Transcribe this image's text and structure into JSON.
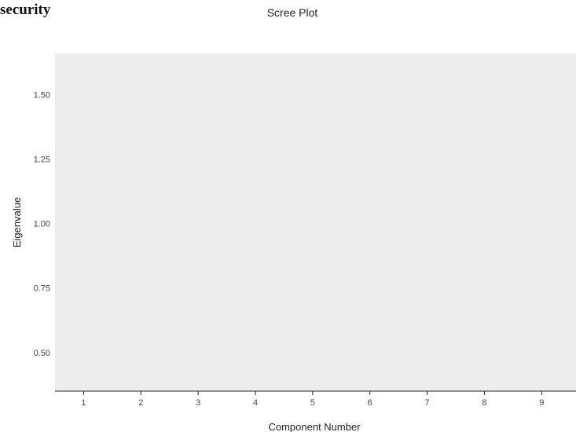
{
  "header": {
    "corner_text": "security"
  },
  "chart_data": {
    "type": "line",
    "title": "Scree Plot",
    "xlabel": "Component Number",
    "ylabel": "Eigenvalue",
    "x": [
      1,
      2,
      3,
      4,
      5,
      6,
      7,
      8,
      9
    ],
    "x_tick_labels": [
      "1",
      "2",
      "3",
      "4",
      "5",
      "6",
      "7",
      "8",
      "9"
    ],
    "y_ticks": [
      0.5,
      0.75,
      1.0,
      1.25,
      1.5
    ],
    "y_tick_labels": [
      "0.50",
      "0.75",
      "1.00",
      "1.25",
      "1.50"
    ],
    "xlim": [
      0.5,
      9.6
    ],
    "ylim": [
      0.35,
      1.66
    ],
    "grid": false,
    "plot_background": "#ededed",
    "series": []
  }
}
